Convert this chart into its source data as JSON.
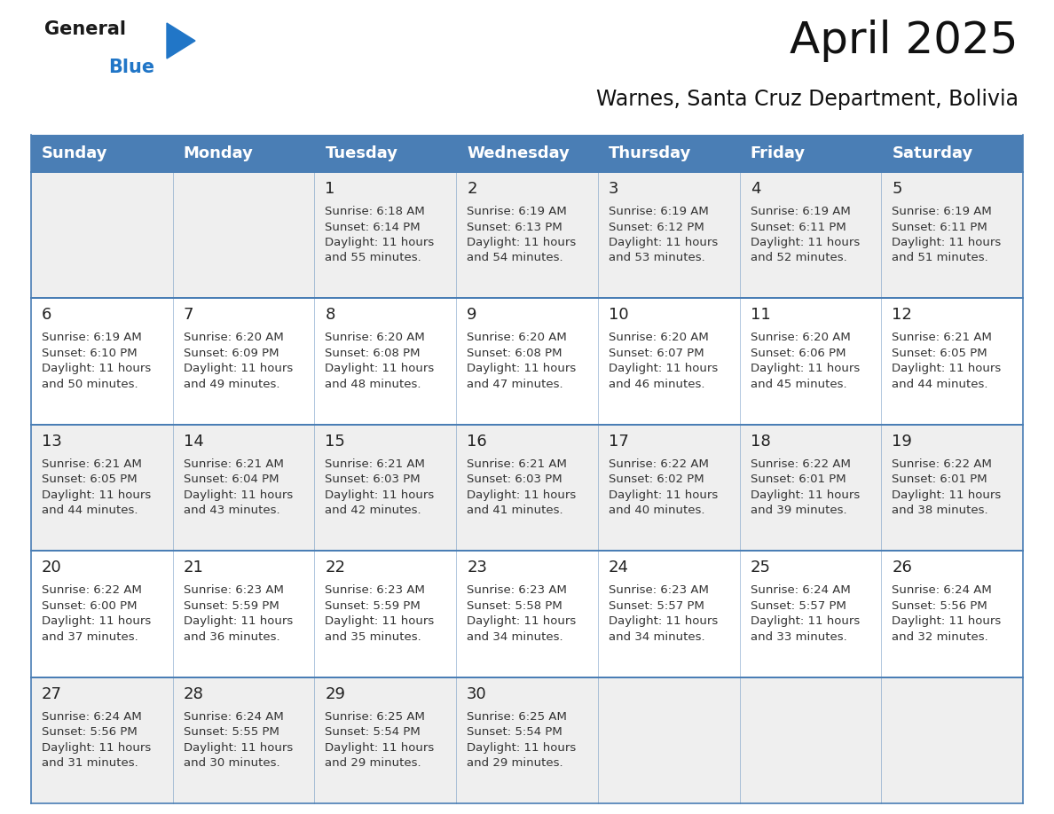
{
  "title": "April 2025",
  "subtitle": "Warnes, Santa Cruz Department, Bolivia",
  "header_color": "#4a7eb5",
  "header_text_color": "#ffffff",
  "border_color": "#4a7eb5",
  "cell_bg_odd": "#efefef",
  "cell_bg_even": "#ffffff",
  "text_color": "#333333",
  "day_num_color": "#222222",
  "days_of_week": [
    "Sunday",
    "Monday",
    "Tuesday",
    "Wednesday",
    "Thursday",
    "Friday",
    "Saturday"
  ],
  "calendar_data": [
    [
      {
        "day": "",
        "sunrise": "",
        "sunset": "",
        "daylight_min": ""
      },
      {
        "day": "",
        "sunrise": "",
        "sunset": "",
        "daylight_min": ""
      },
      {
        "day": "1",
        "sunrise": "6:18 AM",
        "sunset": "6:14 PM",
        "daylight_min": "55"
      },
      {
        "day": "2",
        "sunrise": "6:19 AM",
        "sunset": "6:13 PM",
        "daylight_min": "54"
      },
      {
        "day": "3",
        "sunrise": "6:19 AM",
        "sunset": "6:12 PM",
        "daylight_min": "53"
      },
      {
        "day": "4",
        "sunrise": "6:19 AM",
        "sunset": "6:11 PM",
        "daylight_min": "52"
      },
      {
        "day": "5",
        "sunrise": "6:19 AM",
        "sunset": "6:11 PM",
        "daylight_min": "51"
      }
    ],
    [
      {
        "day": "6",
        "sunrise": "6:19 AM",
        "sunset": "6:10 PM",
        "daylight_min": "50"
      },
      {
        "day": "7",
        "sunrise": "6:20 AM",
        "sunset": "6:09 PM",
        "daylight_min": "49"
      },
      {
        "day": "8",
        "sunrise": "6:20 AM",
        "sunset": "6:08 PM",
        "daylight_min": "48"
      },
      {
        "day": "9",
        "sunrise": "6:20 AM",
        "sunset": "6:08 PM",
        "daylight_min": "47"
      },
      {
        "day": "10",
        "sunrise": "6:20 AM",
        "sunset": "6:07 PM",
        "daylight_min": "46"
      },
      {
        "day": "11",
        "sunrise": "6:20 AM",
        "sunset": "6:06 PM",
        "daylight_min": "45"
      },
      {
        "day": "12",
        "sunrise": "6:21 AM",
        "sunset": "6:05 PM",
        "daylight_min": "44"
      }
    ],
    [
      {
        "day": "13",
        "sunrise": "6:21 AM",
        "sunset": "6:05 PM",
        "daylight_min": "44"
      },
      {
        "day": "14",
        "sunrise": "6:21 AM",
        "sunset": "6:04 PM",
        "daylight_min": "43"
      },
      {
        "day": "15",
        "sunrise": "6:21 AM",
        "sunset": "6:03 PM",
        "daylight_min": "42"
      },
      {
        "day": "16",
        "sunrise": "6:21 AM",
        "sunset": "6:03 PM",
        "daylight_min": "41"
      },
      {
        "day": "17",
        "sunrise": "6:22 AM",
        "sunset": "6:02 PM",
        "daylight_min": "40"
      },
      {
        "day": "18",
        "sunrise": "6:22 AM",
        "sunset": "6:01 PM",
        "daylight_min": "39"
      },
      {
        "day": "19",
        "sunrise": "6:22 AM",
        "sunset": "6:01 PM",
        "daylight_min": "38"
      }
    ],
    [
      {
        "day": "20",
        "sunrise": "6:22 AM",
        "sunset": "6:00 PM",
        "daylight_min": "37"
      },
      {
        "day": "21",
        "sunrise": "6:23 AM",
        "sunset": "5:59 PM",
        "daylight_min": "36"
      },
      {
        "day": "22",
        "sunrise": "6:23 AM",
        "sunset": "5:59 PM",
        "daylight_min": "35"
      },
      {
        "day": "23",
        "sunrise": "6:23 AM",
        "sunset": "5:58 PM",
        "daylight_min": "34"
      },
      {
        "day": "24",
        "sunrise": "6:23 AM",
        "sunset": "5:57 PM",
        "daylight_min": "34"
      },
      {
        "day": "25",
        "sunrise": "6:24 AM",
        "sunset": "5:57 PM",
        "daylight_min": "33"
      },
      {
        "day": "26",
        "sunrise": "6:24 AM",
        "sunset": "5:56 PM",
        "daylight_min": "32"
      }
    ],
    [
      {
        "day": "27",
        "sunrise": "6:24 AM",
        "sunset": "5:56 PM",
        "daylight_min": "31"
      },
      {
        "day": "28",
        "sunrise": "6:24 AM",
        "sunset": "5:55 PM",
        "daylight_min": "30"
      },
      {
        "day": "29",
        "sunrise": "6:25 AM",
        "sunset": "5:54 PM",
        "daylight_min": "29"
      },
      {
        "day": "30",
        "sunrise": "6:25 AM",
        "sunset": "5:54 PM",
        "daylight_min": "29"
      },
      {
        "day": "",
        "sunrise": "",
        "sunset": "",
        "daylight_min": ""
      },
      {
        "day": "",
        "sunrise": "",
        "sunset": "",
        "daylight_min": ""
      },
      {
        "day": "",
        "sunrise": "",
        "sunset": "",
        "daylight_min": ""
      }
    ]
  ],
  "logo_color_general": "#1a1a1a",
  "logo_color_blue": "#2176c7",
  "logo_triangle_color": "#2176c7",
  "title_fontsize": 36,
  "subtitle_fontsize": 17,
  "header_fontsize": 13,
  "day_num_fontsize": 13,
  "cell_text_fontsize": 9.5
}
